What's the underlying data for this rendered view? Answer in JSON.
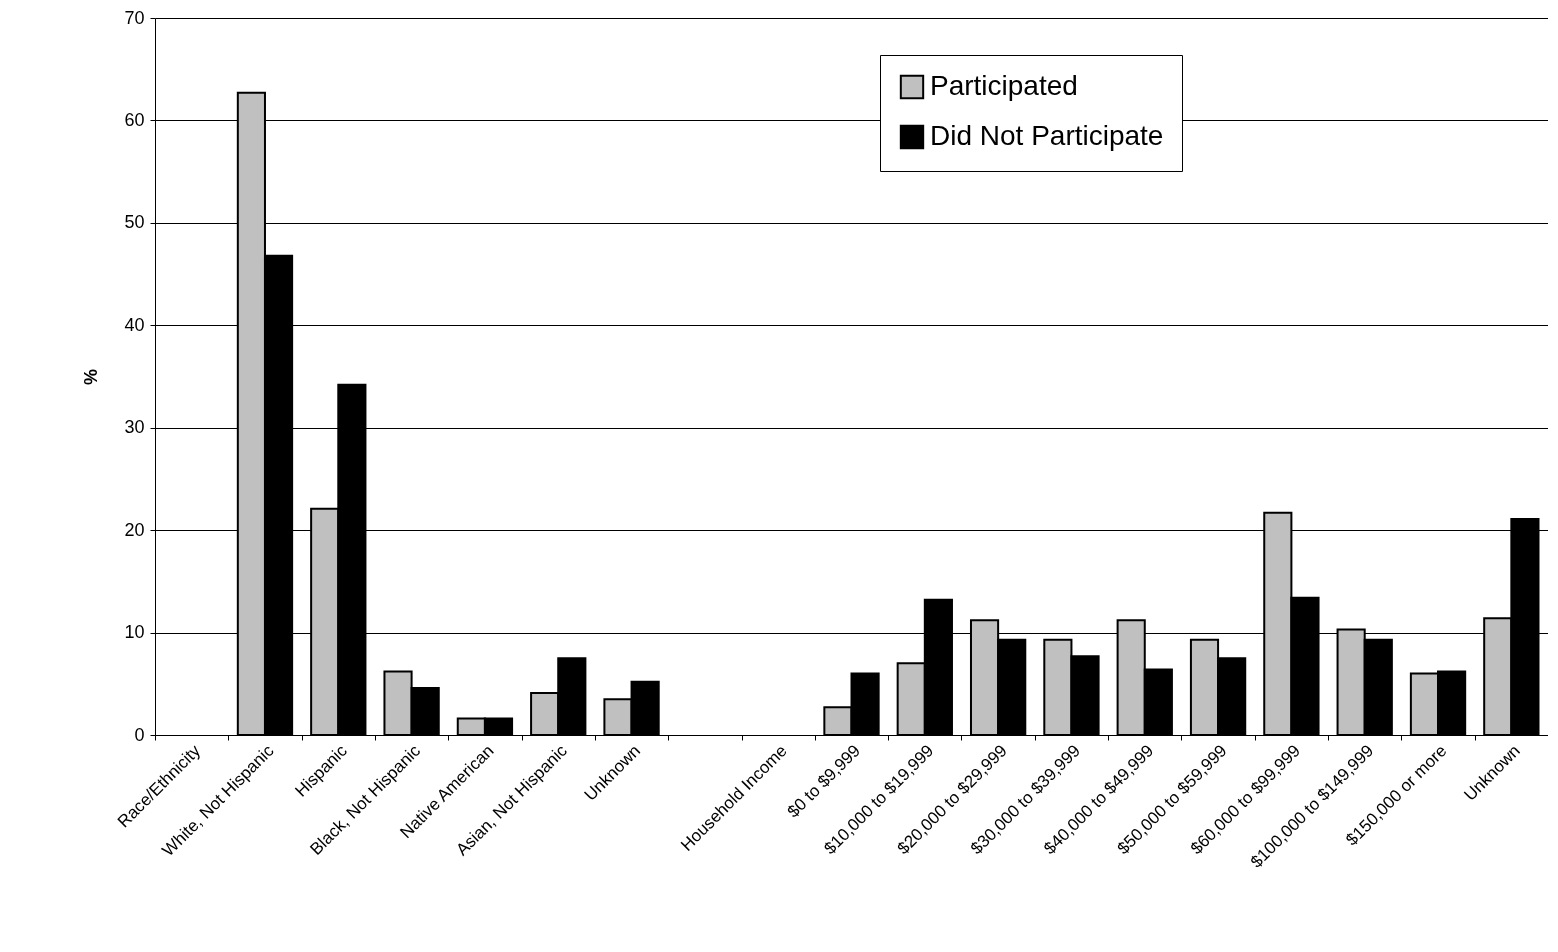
{
  "chart_data": {
    "type": "bar",
    "ylabel": "%",
    "categories": [
      "Race/Ethnicity",
      "White, Not Hispanic",
      "Hispanic",
      "Black, Not Hispanic",
      "Native American",
      "Asian, Not Hispanic",
      "Unknown",
      null,
      "Household Income",
      "$0 to $9,999",
      "$10,000 to $19,999",
      "$20,000 to $29,999",
      "$30,000 to $39,999",
      "$40,000 to $49,999",
      "$50,000 to $59,999",
      "$60,000 to $99,999",
      "$100,000 to $149,999",
      "$150,000 or more",
      "Unknown"
    ],
    "series": [
      {
        "name": "Participated",
        "color": "#c0c0c0",
        "values": [
          null,
          62.7,
          22.1,
          6.2,
          1.6,
          4.1,
          3.5,
          null,
          null,
          2.7,
          7.0,
          11.2,
          9.3,
          11.2,
          9.3,
          21.7,
          10.3,
          6.0,
          11.4
        ]
      },
      {
        "name": "Did Not Participate",
        "color": "#000000",
        "values": [
          null,
          46.8,
          34.2,
          4.6,
          1.6,
          7.5,
          5.2,
          null,
          null,
          6.0,
          13.2,
          9.3,
          7.7,
          6.4,
          7.5,
          13.4,
          9.3,
          6.2,
          21.1
        ]
      }
    ],
    "ylim": [
      0,
      70
    ],
    "yticks": [
      0,
      10,
      20,
      30,
      40,
      50,
      60,
      70
    ],
    "grid": "y",
    "legend": "top right"
  }
}
